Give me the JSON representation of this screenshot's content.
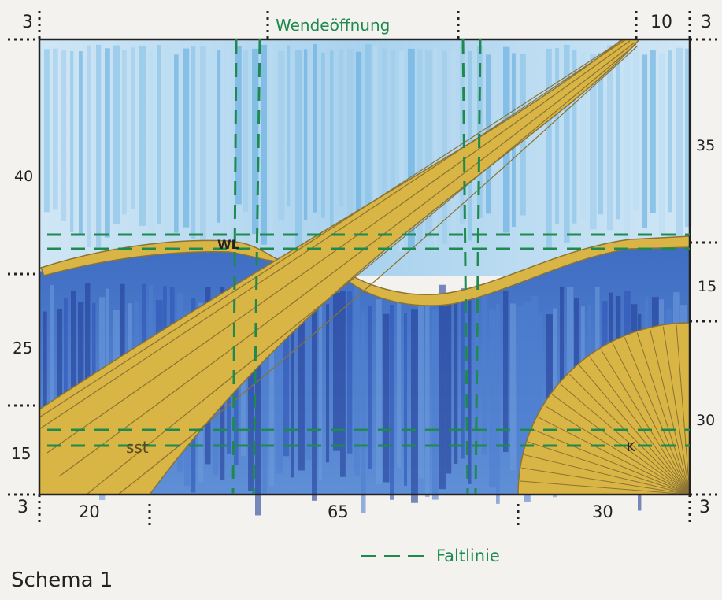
{
  "labels": {
    "top_left_margin": "3",
    "wende": "Wendeöffnung",
    "top_ten": "10",
    "top_right_margin": "3",
    "left_40": "40",
    "left_25": "25",
    "left_15": "15",
    "right_35": "35",
    "right_15": "15",
    "right_30": "30",
    "bottom_left_margin": "3",
    "bottom_20": "20",
    "bottom_65": "65",
    "bottom_30": "30",
    "bottom_right_margin": "3",
    "wl": "WL",
    "sst": "sst",
    "k": "K"
  },
  "legend": {
    "label": "Faltlinie"
  },
  "title": "Schema 1",
  "colors": {
    "sky": "#8ec5e8",
    "sky_light": "#d4e8f5",
    "water": "#3c6fc0",
    "water_dark": "#24409a",
    "gold": "#d9b545",
    "gold_line": "#8a7334",
    "fold": "#1e8a4f",
    "frame": "#222222"
  }
}
